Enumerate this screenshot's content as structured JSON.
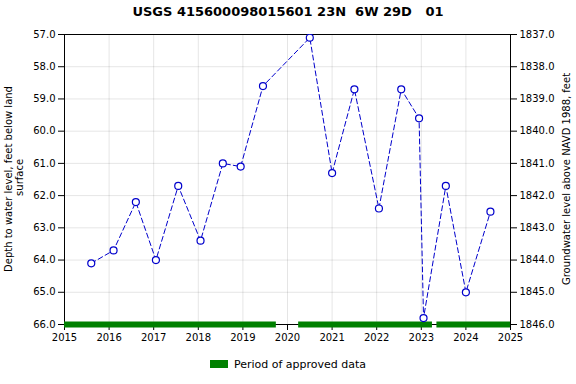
{
  "chart_data": {
    "type": "line",
    "title": "USGS 415600098015601 23N  6W 29D   01",
    "ylabel": "Depth to water level, feet below land\n surface",
    "y2label": "Groundwater level above NAVD 1988, feet",
    "x": [
      2015.6,
      2016.1,
      2016.6,
      2017.05,
      2017.55,
      2018.05,
      2018.55,
      2018.95,
      2019.45,
      2020.5,
      2021.0,
      2021.5,
      2022.05,
      2022.55,
      2022.95,
      2023.05,
      2023.55,
      2024.0,
      2024.55
    ],
    "values": [
      64.1,
      63.7,
      62.2,
      64.0,
      61.7,
      63.4,
      61.0,
      61.1,
      58.6,
      57.1,
      61.3,
      58.7,
      62.4,
      58.7,
      59.6,
      65.8,
      61.7,
      65.0,
      62.5
    ],
    "color": "#0000cc",
    "marker": "circle",
    "line_style": "dashed",
    "xlim": [
      2015,
      2025
    ],
    "xticks": [
      2015,
      2016,
      2017,
      2018,
      2019,
      2020,
      2021,
      2022,
      2023,
      2024,
      2025
    ],
    "ylim": [
      66.0,
      57.0
    ],
    "yticks": [
      {
        "value": 57.0,
        "label": "57.0"
      },
      {
        "value": 58.0,
        "label": "58.0"
      },
      {
        "value": 59.0,
        "label": "59.0"
      },
      {
        "value": 60.0,
        "label": "60.0"
      },
      {
        "value": 61.0,
        "label": "61.0"
      },
      {
        "value": 62.0,
        "label": "62.0"
      },
      {
        "value": 63.0,
        "label": "63.0"
      },
      {
        "value": 64.0,
        "label": "64.0"
      },
      {
        "value": 65.0,
        "label": "65.0"
      },
      {
        "value": 66.0,
        "label": "66.0"
      }
    ],
    "y2lim": [
      1846.0,
      1837.0
    ],
    "y2ticks": [
      {
        "value": 1846.0,
        "label": "1846.0"
      },
      {
        "value": 1845.0,
        "label": "1845.0"
      },
      {
        "value": 1844.0,
        "label": "1844.0"
      },
      {
        "value": 1843.0,
        "label": "1843.0"
      },
      {
        "value": 1842.0,
        "label": "1842.0"
      },
      {
        "value": 1841.0,
        "label": "1841.0"
      },
      {
        "value": 1840.0,
        "label": "1840.0"
      },
      {
        "value": 1839.0,
        "label": "1839.0"
      },
      {
        "value": 1838.0,
        "label": "1838.0"
      },
      {
        "value": 1837.0,
        "label": "1837.0"
      }
    ],
    "grid": true,
    "legend": "bottom",
    "periods": {
      "name": "Period of approved data",
      "color": "#008000",
      "ranges": [
        [
          2015.0,
          2019.75
        ],
        [
          2020.25,
          2023.25
        ],
        [
          2023.35,
          2025.0
        ]
      ]
    }
  }
}
